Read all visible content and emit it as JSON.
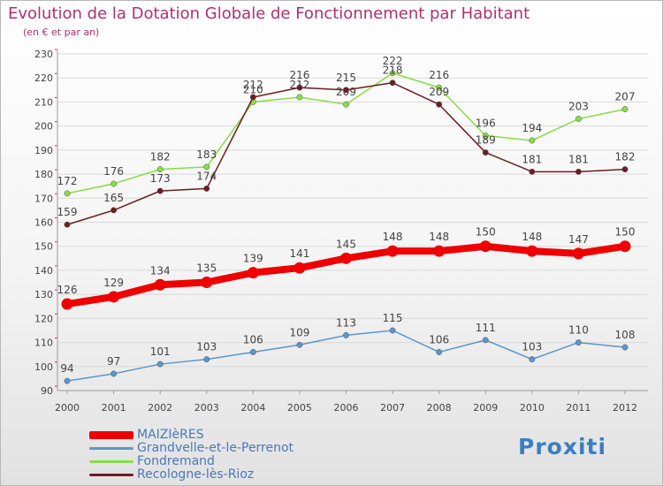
{
  "header": {
    "title": "Evolution de la Dotation Globale de Fonctionnement par Habitant",
    "subtitle": "(en € et par an)"
  },
  "colors": {
    "title": "#b0306e",
    "axis": "#9a9a9a",
    "tick_mark": "#cc3355",
    "grid": "#d9d9d9",
    "label": "#444444"
  },
  "logo": {
    "text": "Proxiti"
  },
  "chart_data": {
    "type": "line",
    "title": "Evolution de la Dotation Globale de Fonctionnement par Habitant",
    "subtitle": "(en € et par an)",
    "x": [
      "2000",
      "2001",
      "2002",
      "2003",
      "2004",
      "2005",
      "2006",
      "2007",
      "2008",
      "2009",
      "2010",
      "2011",
      "2012"
    ],
    "ylim": [
      90,
      230
    ],
    "yticks": [
      90,
      100,
      110,
      120,
      130,
      140,
      150,
      160,
      170,
      180,
      190,
      200,
      210,
      220,
      230
    ],
    "grid": true,
    "legend_position": "bottom-left",
    "series": [
      {
        "name": "MAIZIèRES",
        "color": "#ee0000",
        "thick": true,
        "values": [
          126,
          129,
          134,
          135,
          139,
          141,
          145,
          148,
          148,
          150,
          148,
          147,
          150
        ]
      },
      {
        "name": "Grandvelle-et-le-Perrenot",
        "color": "#5a96cc",
        "thick": false,
        "values": [
          94,
          97,
          101,
          103,
          106,
          109,
          113,
          115,
          106,
          111,
          103,
          110,
          108
        ]
      },
      {
        "name": "Fondremand",
        "color": "#88dd44",
        "thick": false,
        "values": [
          172,
          176,
          182,
          183,
          210,
          212,
          209,
          222,
          216,
          196,
          194,
          203,
          207
        ]
      },
      {
        "name": "Recologne-lès-Rioz",
        "color": "#6b1e24",
        "thick": false,
        "values": [
          159,
          165,
          173,
          174,
          212,
          216,
          215,
          218,
          209,
          189,
          181,
          181,
          182
        ]
      }
    ]
  }
}
